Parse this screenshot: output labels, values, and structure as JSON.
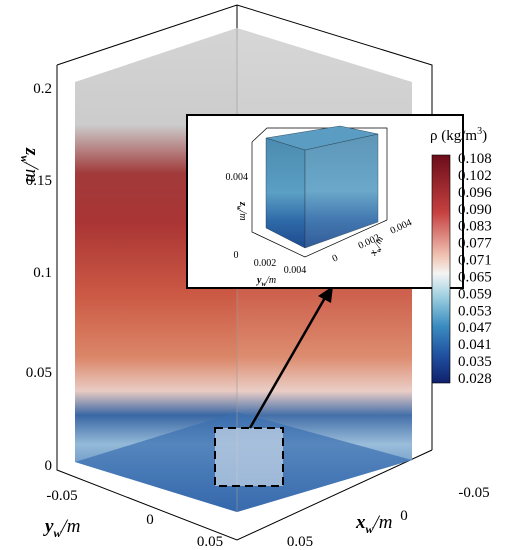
{
  "main_axes": {
    "z_axis": {
      "symbol": "z",
      "subscript": "w",
      "unit": "/m",
      "ticks": [
        "0",
        "0.05",
        "0.1",
        "0.15",
        "0.2"
      ]
    },
    "y_axis": {
      "symbol": "y",
      "subscript": "w",
      "unit": "/m",
      "ticks": [
        "-0.05",
        "0",
        "0.05"
      ]
    },
    "x_axis": {
      "symbol": "x",
      "subscript": "w",
      "unit": "/m",
      "ticks": [
        "-0.05",
        "0",
        "0.05"
      ]
    }
  },
  "colorbar": {
    "title": "ρ (kg/m",
    "superscript": "3",
    "close": ")",
    "ticks": [
      "0.108",
      "0.102",
      "0.096",
      "0.090",
      "0.083",
      "0.077",
      "0.071",
      "0.065",
      "0.059",
      "0.053",
      "0.047",
      "0.041",
      "0.035",
      "0.028"
    ]
  },
  "inset": {
    "z_axis": {
      "symbol": "z",
      "subscript": "w",
      "unit": "/m",
      "ticks": [
        "0.004"
      ]
    },
    "y_axis": {
      "symbol": "y",
      "subscript": "w",
      "unit": "/m",
      "ticks": [
        "0",
        "0.002",
        "0.004"
      ]
    },
    "x_axis": {
      "symbol": "x",
      "subscript": "w",
      "unit": "/m",
      "ticks": [
        "0",
        "0.002",
        "0.004"
      ]
    }
  }
}
